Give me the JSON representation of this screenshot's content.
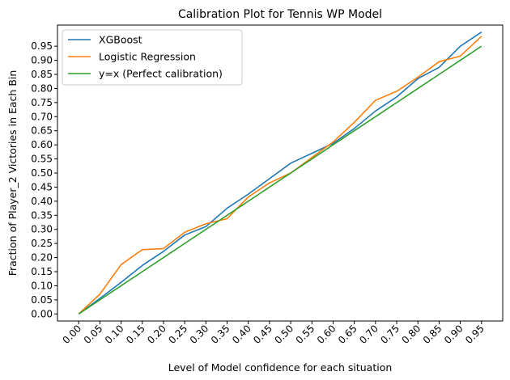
{
  "chart_data": {
    "type": "line",
    "title": "Calibration Plot for Tennis WP Model",
    "xlabel": "Level of Model confidence for each situation",
    "ylabel": "Fraction of Player_2 Victories in Each Bin",
    "xlim": [
      -0.05,
      1.0
    ],
    "ylim": [
      -0.025,
      1.025
    ],
    "xticks": [
      "0.00",
      "0.05",
      "0.10",
      "0.15",
      "0.20",
      "0.25",
      "0.30",
      "0.35",
      "0.40",
      "0.45",
      "0.50",
      "0.55",
      "0.60",
      "0.65",
      "0.70",
      "0.75",
      "0.80",
      "0.85",
      "0.90",
      "0.95"
    ],
    "yticks": [
      "0.00",
      "0.05",
      "0.10",
      "0.15",
      "0.20",
      "0.25",
      "0.30",
      "0.35",
      "0.40",
      "0.45",
      "0.50",
      "0.55",
      "0.60",
      "0.65",
      "0.70",
      "0.75",
      "0.80",
      "0.85",
      "0.90",
      "0.95"
    ],
    "x": [
      0.0,
      0.05,
      0.1,
      0.15,
      0.2,
      0.25,
      0.3,
      0.35,
      0.4,
      0.45,
      0.5,
      0.55,
      0.6,
      0.65,
      0.7,
      0.75,
      0.8,
      0.85,
      0.9,
      0.95
    ],
    "series": [
      {
        "name": "XGBoost",
        "color": "#1f77b4",
        "values": [
          0.0,
          0.055,
          0.112,
          0.172,
          0.222,
          0.28,
          0.31,
          0.375,
          0.425,
          0.48,
          0.535,
          0.57,
          0.605,
          0.658,
          0.72,
          0.77,
          0.835,
          0.875,
          0.95,
          1.0
        ]
      },
      {
        "name": "Logistic Regression",
        "color": "#ff7f0e",
        "values": [
          0.0,
          0.07,
          0.175,
          0.228,
          0.232,
          0.29,
          0.32,
          0.338,
          0.415,
          0.465,
          0.5,
          0.555,
          0.61,
          0.68,
          0.758,
          0.79,
          0.84,
          0.895,
          0.915,
          0.985
        ]
      },
      {
        "name": "y=x (Perfect calibration)",
        "color": "#2ca02c",
        "values": [
          0.0,
          0.05,
          0.1,
          0.15,
          0.2,
          0.25,
          0.3,
          0.35,
          0.4,
          0.45,
          0.5,
          0.55,
          0.6,
          0.65,
          0.7,
          0.75,
          0.8,
          0.85,
          0.9,
          0.95
        ]
      }
    ],
    "grid": false,
    "legend": "top-left"
  }
}
